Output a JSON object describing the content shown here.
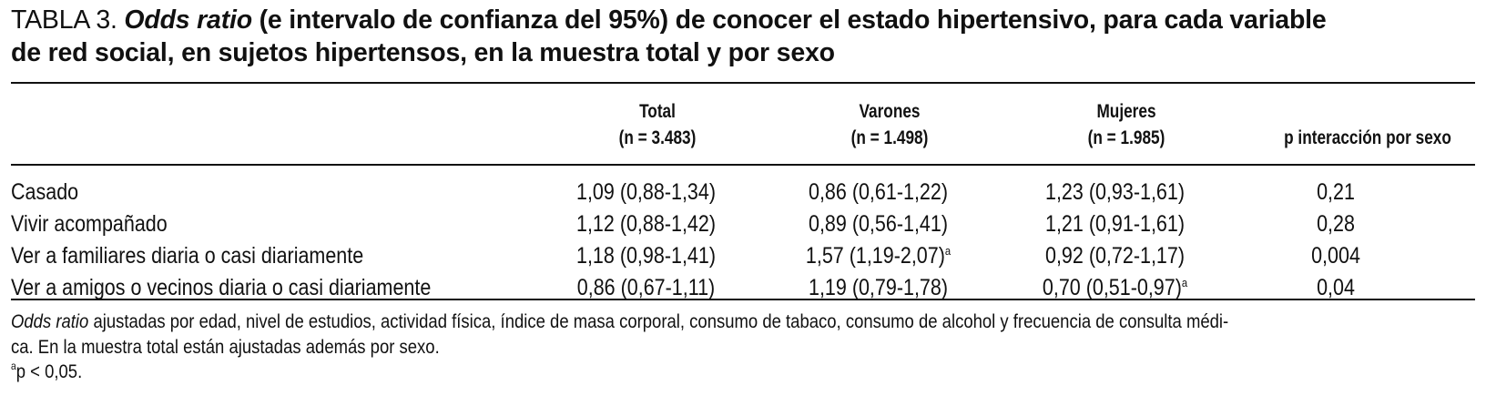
{
  "title": {
    "label": "TABLA 3.",
    "emphasis": "Odds ratio",
    "line1_rest": "(e intervalo de confianza del 95%) de conocer el estado hipertensivo, para cada variable",
    "line2": "de red social, en sujetos hipertensos, en la muestra total y por sexo"
  },
  "table": {
    "headers": [
      {
        "line1": "Total",
        "line2": "(n = 3.483)"
      },
      {
        "line1": "Varones",
        "line2": "(n = 1.498)"
      },
      {
        "line1": "Mujeres",
        "line2": "(n = 1.985)"
      },
      {
        "line1": "",
        "line2": "p interacción por sexo"
      }
    ],
    "rows": [
      {
        "label": "Casado",
        "total": "1,09 (0,88-1,34)",
        "varones": "0,86 (0,61-1,22)",
        "varones_mark": "",
        "mujeres": "1,23 (0,93-1,61)",
        "mujeres_mark": "",
        "p": "0,21"
      },
      {
        "label": "Vivir acompañado",
        "total": "1,12 (0,88-1,42)",
        "varones": "0,89 (0,56-1,41)",
        "varones_mark": "",
        "mujeres": "1,21 (0,91-1,61)",
        "mujeres_mark": "",
        "p": "0,28"
      },
      {
        "label": "Ver a familiares diaria o casi diariamente",
        "total": "1,18 (0,98-1,41)",
        "varones": "1,57 (1,19-2,07)",
        "varones_mark": "a",
        "mujeres": "0,92 (0,72-1,17)",
        "mujeres_mark": "",
        "p": "0,004"
      },
      {
        "label": "Ver a amigos o vecinos diaria o casi diariamente",
        "total": "0,86 (0,67-1,11)",
        "varones": "1,19 (0,79-1,78)",
        "varones_mark": "",
        "mujeres": "0,70 (0,51-0,97)",
        "mujeres_mark": "a",
        "p": "0,04"
      }
    ]
  },
  "notes": {
    "emphasis": "Odds ratio",
    "line1_rest": "ajustadas por edad, nivel de estudios, actividad física, índice de masa corporal, consumo de tabaco, consumo de alcohol y frecuencia de consulta médi-",
    "line2": "ca. En la muestra total están ajustadas además por sexo.",
    "footnote_mark": "a",
    "footnote_text": "p < 0,05."
  }
}
